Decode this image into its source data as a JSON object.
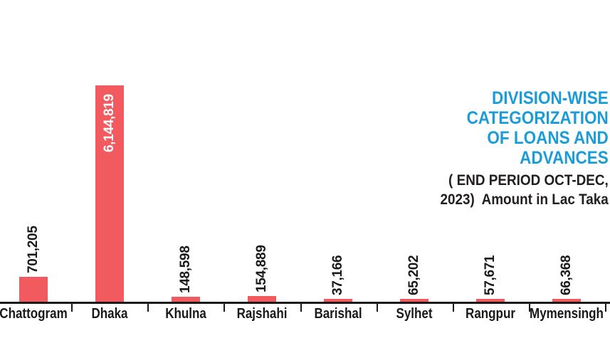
{
  "colors": {
    "background": "#FFFFFF",
    "bar": "#F15B5F",
    "title_blue": "#1B9CD9",
    "text_black": "#1A1A1A",
    "subtitle_black": "#231F20",
    "axis": "#1A1A1A",
    "value_label_inside_bar": "#FFFFFF"
  },
  "header": {
    "title_lines": [
      "DIVISION-WISE",
      "CATEGORIZATION",
      "OF LOANS AND",
      "ADVANCES"
    ],
    "subtitle_lines": [
      "( END PERIOD OCT-DEC,",
      "2023)  Amount in Lac Taka"
    ]
  },
  "chart_data": {
    "type": "bar",
    "title": "DIVISION-WISE CATEGORIZATION OF LOANS AND ADVANCES",
    "subtitle": "( END PERIOD OCT-DEC, 2023) Amount in Lac Taka",
    "units": "Lac Taka",
    "categories": [
      "Chattogram",
      "Dhaka",
      "Khulna",
      "Rajshahi",
      "Barishal",
      "Sylhet",
      "Rangpur",
      "Mymensingh"
    ],
    "values": [
      701205,
      6144819,
      148598,
      154889,
      37166,
      65202,
      57671,
      66368
    ],
    "value_labels": [
      "701,205",
      "6,144,819",
      "148,598",
      "154,889",
      "37,166",
      "65,202",
      "57,671",
      "66,368"
    ],
    "xlabel": "",
    "ylabel": "",
    "ylim": [
      0,
      6144819
    ],
    "grid": false,
    "legend": false,
    "bar_color": "#F15B5F",
    "value_label_rotation": -90,
    "inside_bar_label_category": "Dhaka"
  }
}
